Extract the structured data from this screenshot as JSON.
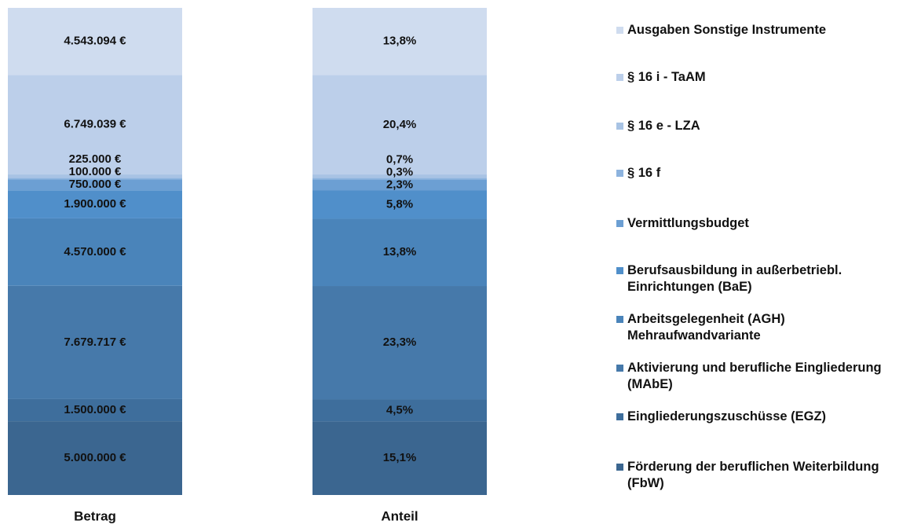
{
  "chart_data": {
    "type": "bar",
    "stacked": true,
    "categories": [
      "Betrag",
      "Anteil"
    ],
    "series": [
      {
        "name": "Förderung der beruflichen Weiterbildung (FbW)",
        "color": "#3b6690",
        "values": [
          5000000,
          15.1
        ],
        "value_labels": [
          "5.000.000 €",
          "15,1%"
        ]
      },
      {
        "name": "Eingliederungszuschüsse (EGZ)",
        "color": "#3e6e9c",
        "values": [
          1500000,
          4.5
        ],
        "value_labels": [
          "1.500.000 €",
          "4,5%"
        ]
      },
      {
        "name": "Aktivierung und berufliche Eingliederung (MAbE)",
        "color": "#4679aa",
        "values": [
          7679717,
          23.3
        ],
        "value_labels": [
          "7.679.717 €",
          "23,3%"
        ]
      },
      {
        "name": "Arbeitsgelegenheit (AGH) Mehraufwandvariante",
        "color": "#4a84ba",
        "values": [
          4570000,
          13.8
        ],
        "value_labels": [
          "4.570.000 €",
          "13,8%"
        ]
      },
      {
        "name": "Berufsausbildung in außerbetriebl. Einrichtungen (BaE)",
        "color": "#508fca",
        "values": [
          1900000,
          5.8
        ],
        "value_labels": [
          "1.900.000 €",
          "5,8%"
        ]
      },
      {
        "name": "Vermittlungsbudget",
        "color": "#6c9fd3",
        "values": [
          750000,
          2.3
        ],
        "value_labels": [
          "750.000 €",
          "2,3%"
        ]
      },
      {
        "name": "§ 16 f",
        "color": "#8db3de",
        "values": [
          100000,
          0.3
        ],
        "value_labels": [
          "100.000 €",
          "0,3%"
        ]
      },
      {
        "name": "§ 16 e - LZA",
        "color": "#a8c3e4",
        "values": [
          225000,
          0.7
        ],
        "value_labels": [
          "225.000 €",
          "0,7%"
        ]
      },
      {
        "name": "§ 16 i - TaAM",
        "color": "#bccfea",
        "values": [
          6749039,
          20.4
        ],
        "value_labels": [
          "6.749.039 €",
          "20,4%"
        ]
      },
      {
        "name": "Ausgaben Sonstige Instrumente",
        "color": "#cfdcef",
        "values": [
          4543094,
          13.8
        ],
        "value_labels": [
          "4.543.094 €",
          "13,8%"
        ]
      }
    ]
  }
}
